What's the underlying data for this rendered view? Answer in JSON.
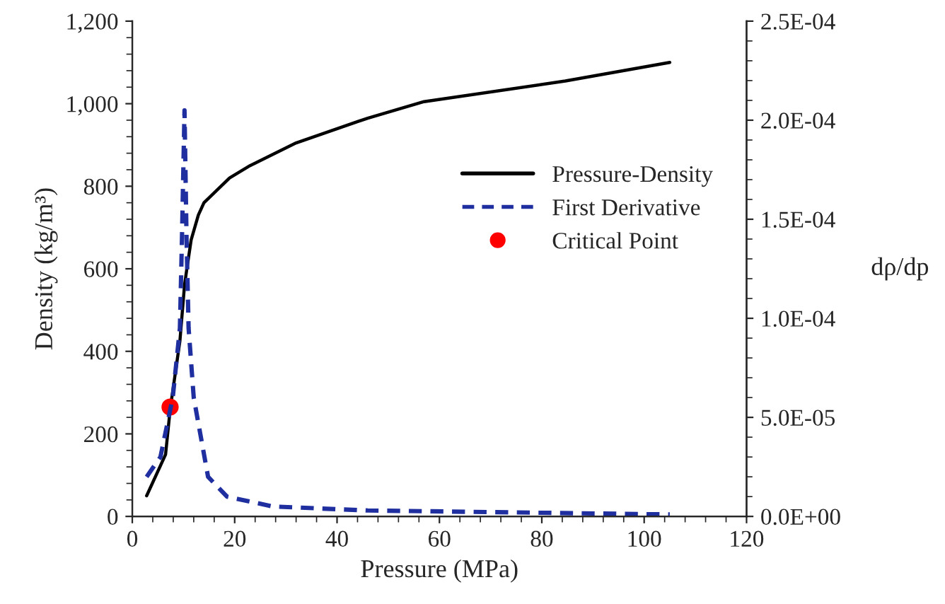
{
  "chart_data": {
    "type": "line",
    "xlabel": "Pressure (MPa)",
    "ylabel": "Density (kg/m³)",
    "y2label": "dρ/dp",
    "xlim": [
      0,
      120
    ],
    "xticks": [
      0,
      20,
      40,
      60,
      80,
      100,
      120
    ],
    "ylim": [
      0,
      1200
    ],
    "yticks": [
      0,
      {
        "value": 200,
        "label": "200"
      },
      {
        "value": 400,
        "label": "400"
      },
      {
        "value": 600,
        "label": "600"
      },
      {
        "value": 800,
        "label": "800"
      },
      {
        "value": 1000,
        "label": "1,000"
      },
      {
        "value": 1200,
        "label": "1,200"
      }
    ],
    "y2lim": [
      0,
      0.00025
    ],
    "y2ticks": [
      {
        "value": 0,
        "label": "0.0E+00"
      },
      {
        "value": 5e-05,
        "label": "5.0E-05"
      },
      {
        "value": 0.0001,
        "label": "1.0E-04"
      },
      {
        "value": 0.00015,
        "label": "1.5E-04"
      },
      {
        "value": 0.0002,
        "label": "2.0E-04"
      },
      {
        "value": 0.00025,
        "label": "2.5E-04"
      }
    ],
    "grid": false,
    "legend": "right",
    "series": [
      {
        "name": "Pressure-Density",
        "color": "#000000",
        "line_style": "solid",
        "marker": "none",
        "x": [
          2.8,
          6.5,
          7.4,
          9.3,
          10.2,
          10.6,
          11.5,
          12.9,
          14,
          16.5,
          19,
          23,
          32,
          46,
          57,
          84.6,
          105
        ],
        "values": [
          50,
          150,
          260,
          425,
          560,
          595,
          670,
          730,
          760,
          790,
          820,
          850,
          905,
          965,
          1005,
          1055,
          1100
        ]
      },
      {
        "name": "First Derivative",
        "axis": "y2",
        "color": "#1f2f9f",
        "line_style": "dashed",
        "marker": "none",
        "x": [
          2.8,
          5.5,
          7.9,
          9.3,
          9.7,
          10.2,
          10.6,
          11.0,
          12.0,
          14.8,
          18.5,
          27.5,
          46,
          105
        ],
        "values": [
          2e-05,
          3e-05,
          6e-05,
          9.5e-05,
          0.00014,
          0.000205,
          0.00014,
          9.5e-05,
          6e-05,
          2e-05,
          1e-05,
          5e-06,
          3e-06,
          1e-06
        ]
      },
      {
        "name": "Critical Point",
        "type": "scatter",
        "color": "#ff0000",
        "marker": "circle",
        "x": [
          7.38
        ],
        "values": [
          265
        ]
      }
    ]
  }
}
